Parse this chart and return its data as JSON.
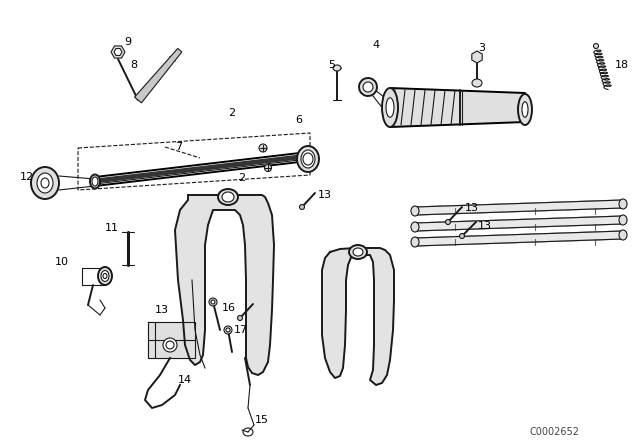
{
  "background_color": "#ffffff",
  "diagram_color": "#1a1a1a",
  "watermark": "C0002652",
  "shaft_color": "#111111",
  "gray_fill": "#c8c8c8",
  "light_gray": "#e0e0e0"
}
